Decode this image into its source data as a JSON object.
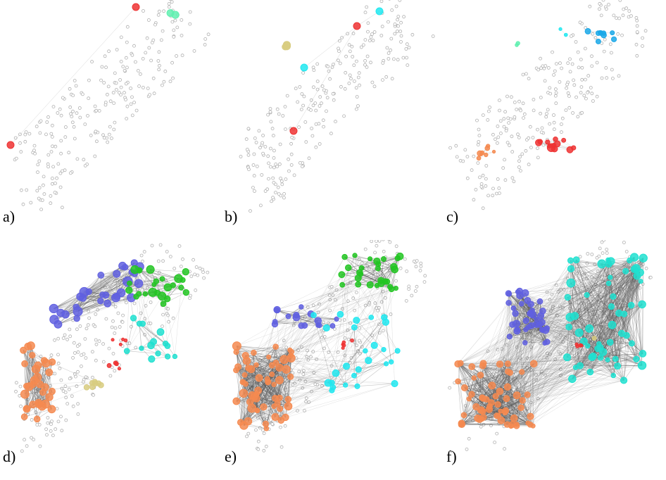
{
  "panels": [
    {
      "label": "a)"
    },
    {
      "label": "b)"
    },
    {
      "label": "c)"
    },
    {
      "label": "d)"
    },
    {
      "label": "e)"
    },
    {
      "label": "f)"
    }
  ],
  "colors": {
    "red": "#ee3333",
    "green": "#22c522",
    "blue": "#6060e0",
    "cyan": "#20e0d0",
    "aqua": "#20e8f0",
    "sky": "#1aa8e8",
    "orange": "#f58a50",
    "olive": "#d8cc80",
    "mint": "#60f0b0",
    "inactive": "#b0b0b0",
    "edge": "#555555"
  }
}
